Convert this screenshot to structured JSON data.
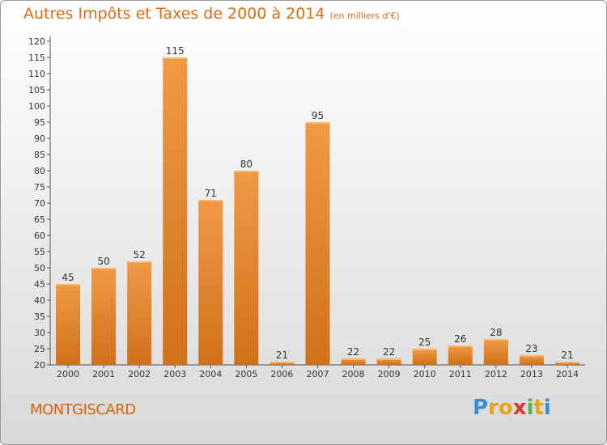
{
  "title": "Autres Impôts et Taxes de 2000 à 2014",
  "subtitle": "(en milliers d'€)",
  "commune": "MONTGISCARD",
  "logo": {
    "letters": [
      "P",
      "r",
      "o",
      "x",
      "i",
      "t",
      "i"
    ],
    "colors": [
      "#3a8ed8",
      "#e8a21a",
      "#e8a21a",
      "#d63a2a",
      "#5bb04a",
      "#e8a21a",
      "#3a8ed8"
    ]
  },
  "colors": {
    "bar": "#f09a45",
    "bar_dark": "#d0701a",
    "text": "#333333",
    "accent": "#e06b12"
  },
  "chart_data": {
    "type": "bar",
    "categories": [
      "2000",
      "2001",
      "2002",
      "2003",
      "2004",
      "2005",
      "2006",
      "2007",
      "2008",
      "2009",
      "2010",
      "2011",
      "2012",
      "2013",
      "2014"
    ],
    "values": [
      45,
      50,
      52,
      115,
      71,
      80,
      21,
      95,
      22,
      22,
      25,
      26,
      28,
      23,
      21
    ],
    "value_labels": [
      "45",
      "50",
      "52",
      "115",
      "71",
      "80",
      "21",
      "95",
      "22",
      "22",
      "25",
      "26",
      "28",
      "23",
      "21"
    ],
    "title": "Autres Impôts et Taxes de 2000 à 2014",
    "xlabel": "",
    "ylabel": "",
    "ylim": [
      20,
      120
    ],
    "yticks": [
      "20",
      "25",
      "30",
      "35",
      "40",
      "45",
      "50",
      "55",
      "60",
      "65",
      "70",
      "75",
      "80",
      "85",
      "90",
      "95",
      "100",
      "105",
      "110",
      "115",
      "120"
    ],
    "grid": false,
    "legend": "none"
  }
}
